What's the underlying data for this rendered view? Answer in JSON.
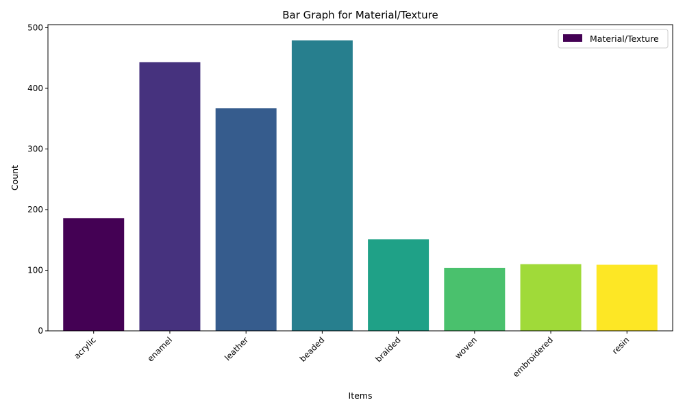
{
  "chart_data": {
    "type": "bar",
    "title": "Bar Graph for Material/Texture",
    "xlabel": "Items",
    "ylabel": "Count",
    "categories": [
      "acrylic",
      "enamel",
      "leather",
      "beaded",
      "braided",
      "woven",
      "embroidered",
      "resin"
    ],
    "series": [
      {
        "name": "Material/Texture",
        "values": [
          186,
          443,
          367,
          479,
          151,
          104,
          110,
          109
        ],
        "colors": [
          "#440154",
          "#46327e",
          "#365c8d",
          "#277f8e",
          "#1fa187",
          "#4ac16d",
          "#a0da39",
          "#fde725"
        ]
      }
    ],
    "ylim": [
      0,
      505
    ],
    "yticks": [
      0,
      100,
      200,
      300,
      400,
      500
    ],
    "grid": false,
    "legend": "top-right"
  }
}
